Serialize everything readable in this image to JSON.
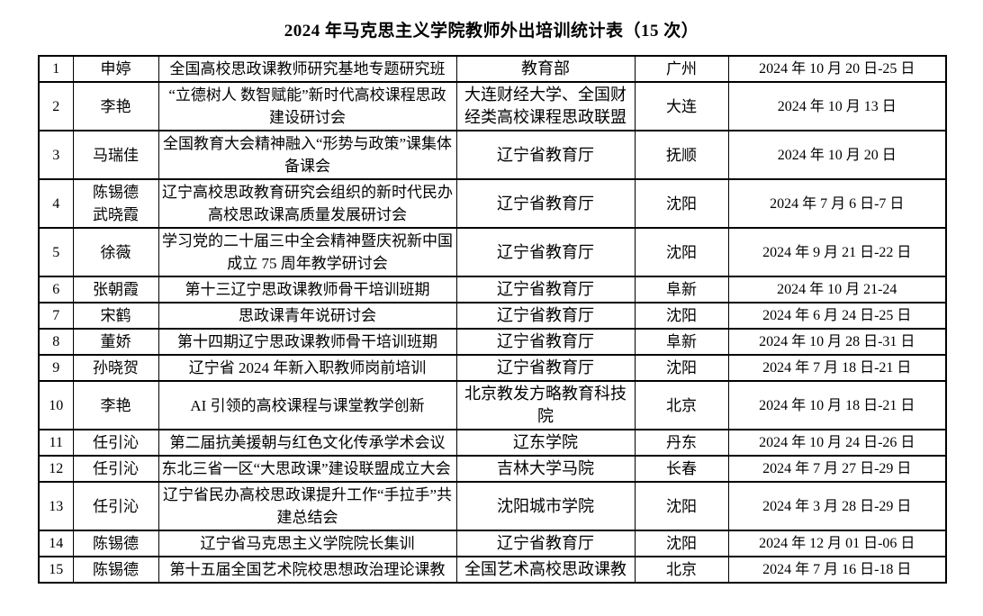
{
  "document": {
    "title": "2024 年马克思主义学院教师外出培训统计表（15 次）"
  },
  "table": {
    "rows": [
      {
        "no": "1",
        "name": "申婷",
        "topic": "全国高校思政课教师研究基地专题研究班",
        "organizer": "教育部",
        "location": "广州",
        "dates": "2024 年 10 月 20 日-25 日"
      },
      {
        "no": "2",
        "name": "李艳",
        "topic": "“立德树人 数智赋能”新时代高校课程思政建设研讨会",
        "organizer": "大连财经大学、全国财经类高校课程思政联盟",
        "location": "大连",
        "dates": "2024 年 10 月 13 日"
      },
      {
        "no": "3",
        "name": "马瑞佳",
        "topic": "全国教育大会精神融入“形势与政策”课集体备课会",
        "organizer": "辽宁省教育厅",
        "location": "抚顺",
        "dates": "2024 年 10 月 20 日"
      },
      {
        "no": "4",
        "name": "陈锡德\n武晓霞",
        "topic": "辽宁高校思政教育研究会组织的新时代民办高校思政课高质量发展研讨会",
        "organizer": "辽宁省教育厅",
        "location": "沈阳",
        "dates": "2024 年 7 月 6 日-7 日"
      },
      {
        "no": "5",
        "name": "徐薇",
        "topic": "学习党的二十届三中全会精神暨庆祝新中国成立 75 周年教学研讨会",
        "organizer": "辽宁省教育厅",
        "location": "沈阳",
        "dates": "2024 年 9 月 21 日-22 日"
      },
      {
        "no": "6",
        "name": "张朝霞",
        "topic": "第十三辽宁思政课教师骨干培训班期",
        "organizer": "辽宁省教育厅",
        "location": "阜新",
        "dates": "2024 年 10 月 21-24"
      },
      {
        "no": "7",
        "name": "宋鹤",
        "topic": "思政课青年说研讨会",
        "organizer": "辽宁省教育厅",
        "location": "沈阳",
        "dates": "2024 年 6 月 24 日-25 日"
      },
      {
        "no": "8",
        "name": "董娇",
        "topic": "第十四期辽宁思政课教师骨干培训班期",
        "organizer": "辽宁省教育厅",
        "location": "阜新",
        "dates": "2024 年 10 月 28 日-31 日"
      },
      {
        "no": "9",
        "name": "孙晓贺",
        "topic": "辽宁省 2024 年新入职教师岗前培训",
        "organizer": "辽宁省教育厅",
        "location": "沈阳",
        "dates": "2024 年 7 月 18 日-21 日"
      },
      {
        "no": "10",
        "name": "李艳",
        "topic": "AI 引领的高校课程与课堂教学创新",
        "organizer": "北京教发方略教育科技院",
        "location": "北京",
        "dates": "2024 年 10 月 18 日-21 日"
      },
      {
        "no": "11",
        "name": "任引沁",
        "topic": "第二届抗美援朝与红色文化传承学术会议",
        "organizer": "辽东学院",
        "location": "丹东",
        "dates": "2024 年 10 月 24 日-26 日"
      },
      {
        "no": "12",
        "name": "任引沁",
        "topic": "东北三省一区“大思政课”建设联盟成立大会",
        "organizer": "吉林大学马院",
        "location": "长春",
        "dates": "2024 年 7 月 27 日-29 日"
      },
      {
        "no": "13",
        "name": "任引沁",
        "topic": "辽宁省民办高校思政课提升工作“手拉手”共建总结会",
        "organizer": "沈阳城市学院",
        "location": "沈阳",
        "dates": "2024 年 3 月 28 日-29 日"
      },
      {
        "no": "14",
        "name": "陈锡德",
        "topic": "辽宁省马克思主义学院院长集训",
        "organizer": "辽宁省教育厅",
        "location": "沈阳",
        "dates": "2024 年 12 月 01 日-06 日"
      },
      {
        "no": "15",
        "name": "陈锡德",
        "topic": "第十五届全国艺术院校思想政治理论课教",
        "organizer": "全国艺术高校思政课教",
        "location": "北京",
        "dates": "2024 年 7 月 16 日-18 日"
      }
    ]
  }
}
